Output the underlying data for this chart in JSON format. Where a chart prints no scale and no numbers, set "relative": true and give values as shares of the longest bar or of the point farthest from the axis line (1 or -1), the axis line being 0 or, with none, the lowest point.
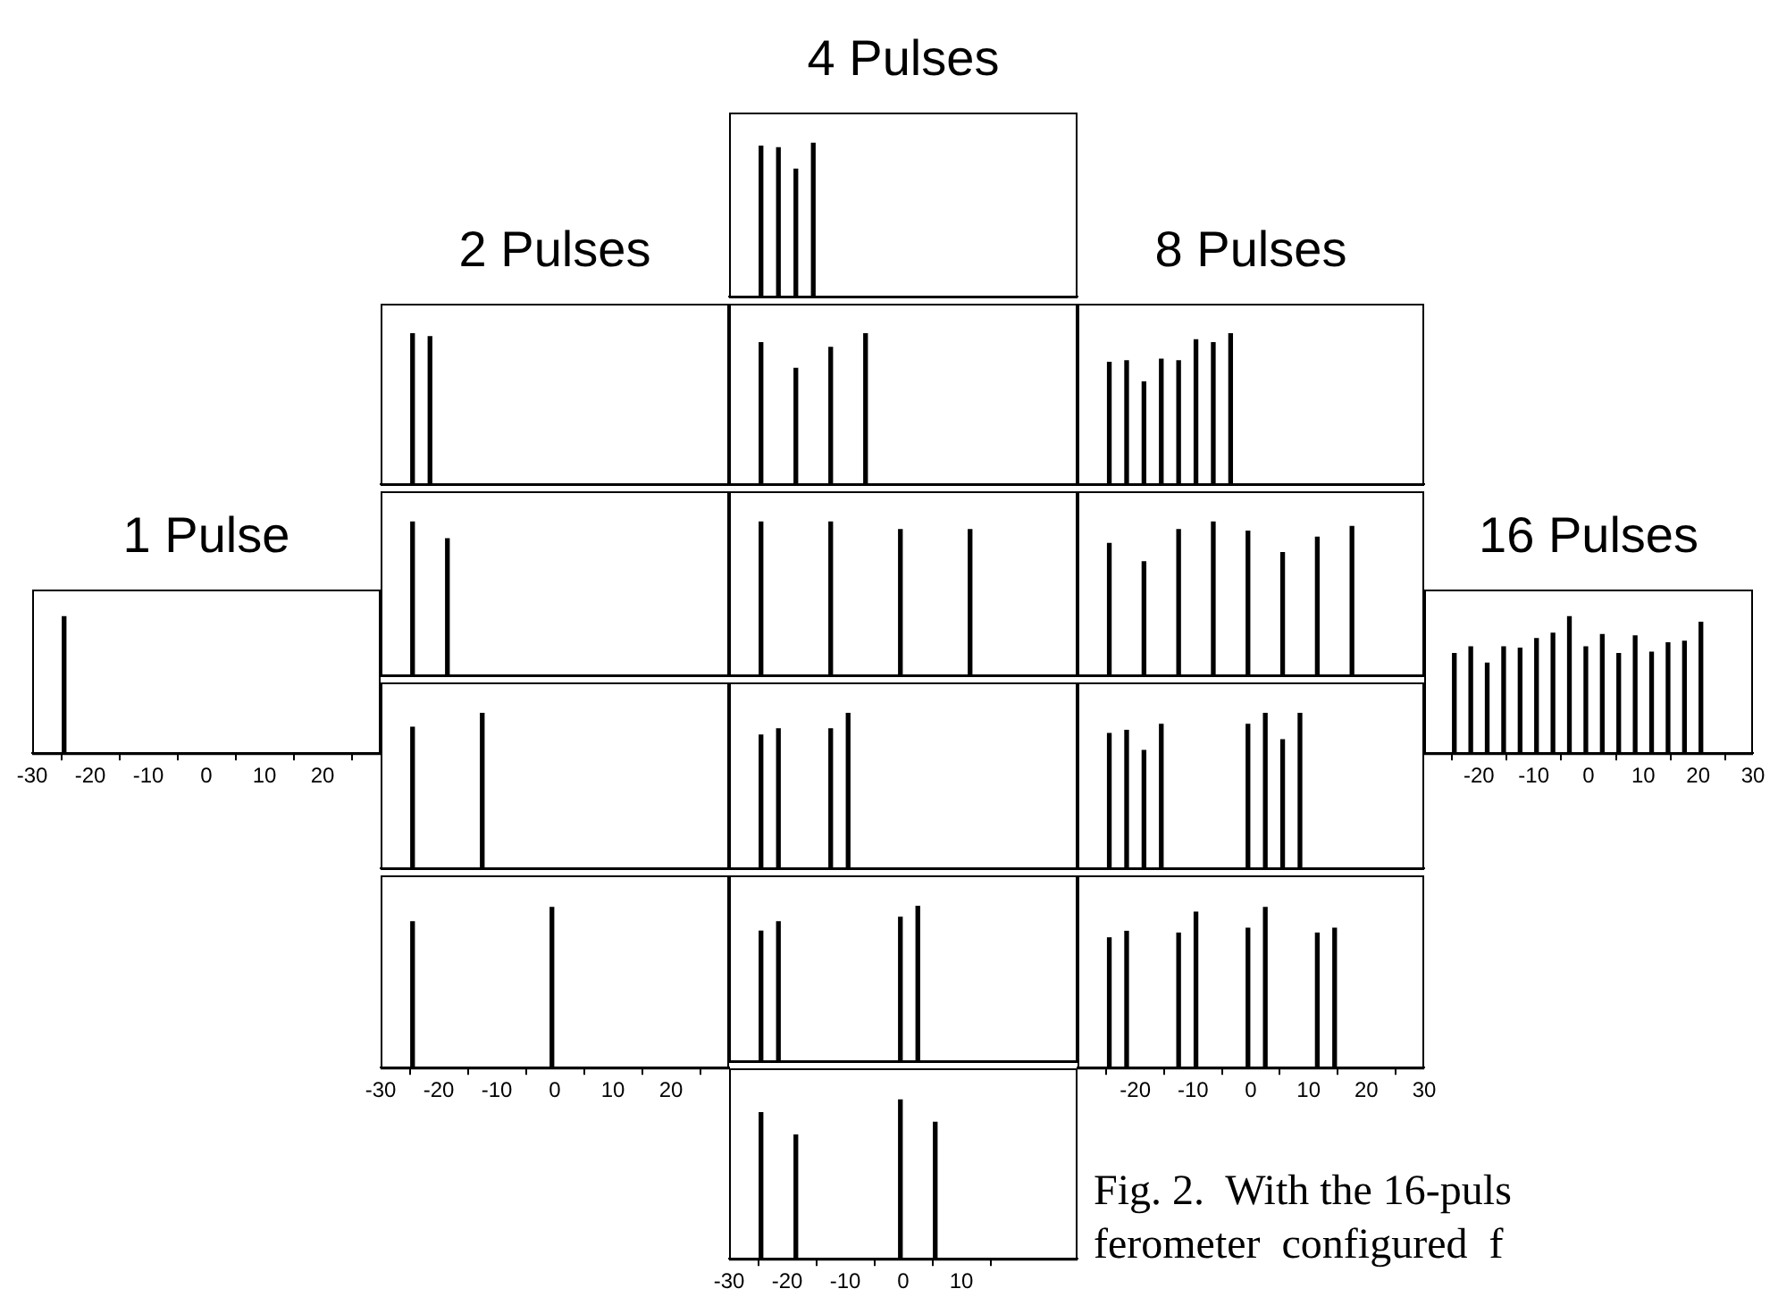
{
  "chart_data": [
    {
      "type": "bar",
      "title": "1 Pulse",
      "relative": true,
      "color": "#000000",
      "x": [
        -24.5
      ],
      "values": [
        1
      ],
      "xlim": [
        -30,
        30
      ],
      "xticks": [
        -30,
        -20,
        -10,
        0,
        10,
        20
      ],
      "tick_labels": "x"
    },
    {
      "type": "bar",
      "title": "2 Pulses",
      "relative": true,
      "color": "#000000",
      "x": [
        -24.5,
        -21.5
      ],
      "values": [
        1,
        0.98
      ],
      "xlim": [
        -30,
        30
      ],
      "tick_labels": false
    },
    {
      "type": "bar",
      "relative": true,
      "color": "#000000",
      "x": [
        -24.5,
        -18.5
      ],
      "values": [
        1,
        0.89
      ],
      "xlim": [
        -30,
        30
      ],
      "tick_labels": false
    },
    {
      "type": "bar",
      "relative": true,
      "color": "#000000",
      "x": [
        -24.5,
        -12.5
      ],
      "values": [
        0.91,
        1
      ],
      "xlim": [
        -30,
        30
      ],
      "tick_labels": false
    },
    {
      "type": "bar",
      "relative": true,
      "color": "#000000",
      "x": [
        -24.5,
        -0.5
      ],
      "values": [
        0.91,
        1
      ],
      "xlim": [
        -30,
        30
      ],
      "xticks": [
        -30,
        -20,
        -10,
        0,
        10,
        20
      ],
      "tick_labels": "x"
    },
    {
      "type": "bar",
      "title": "4 Pulses",
      "relative": true,
      "color": "#000000",
      "x": [
        -24.5,
        -21.5,
        -18.5,
        -15.5
      ],
      "values": [
        0.98,
        0.97,
        0.83,
        1
      ],
      "xlim": [
        -30,
        30
      ],
      "tick_labels": false
    },
    {
      "type": "bar",
      "relative": true,
      "color": "#000000",
      "x": [
        -24.5,
        -18.5,
        -12.5,
        -6.5
      ],
      "values": [
        0.94,
        0.77,
        0.91,
        1
      ],
      "xlim": [
        -30,
        30
      ],
      "tick_labels": false
    },
    {
      "type": "bar",
      "relative": true,
      "color": "#000000",
      "x": [
        -24.5,
        -12.5,
        -0.5,
        11.5
      ],
      "values": [
        1,
        1,
        0.95,
        0.95
      ],
      "xlim": [
        -30,
        30
      ],
      "tick_labels": false
    },
    {
      "type": "bar",
      "relative": true,
      "color": "#000000",
      "x": [
        -24.5,
        -21.5,
        -12.5,
        -9.5
      ],
      "values": [
        0.86,
        0.9,
        0.9,
        1
      ],
      "xlim": [
        -30,
        30
      ],
      "tick_labels": false
    },
    {
      "type": "bar",
      "relative": true,
      "color": "#000000",
      "x": [
        -24.5,
        -21.5,
        -0.5,
        2.5
      ],
      "values": [
        0.84,
        0.9,
        0.93,
        1
      ],
      "xlim": [
        -30,
        30
      ],
      "tick_labels": false
    },
    {
      "type": "bar",
      "relative": true,
      "color": "#000000",
      "x": [
        -24.5,
        -18.5,
        -0.5,
        5.5
      ],
      "values": [
        0.92,
        0.78,
        1,
        0.86
      ],
      "xlim": [
        -30,
        30
      ],
      "xticks": [
        -30,
        -20,
        -10,
        0,
        10
      ],
      "tick_labels": "x"
    },
    {
      "type": "bar",
      "title": "8 Pulses",
      "relative": true,
      "color": "#000000",
      "x": [
        -24.5,
        -21.5,
        -18.5,
        -15.5,
        -12.5,
        -9.5,
        -6.5,
        -3.5
      ],
      "values": [
        0.81,
        0.82,
        0.68,
        0.83,
        0.82,
        0.96,
        0.94,
        1
      ],
      "xlim": [
        -30,
        30
      ],
      "tick_labels": false
    },
    {
      "type": "bar",
      "relative": true,
      "color": "#000000",
      "x": [
        -24.5,
        -18.5,
        -12.5,
        -6.5,
        -0.5,
        5.5,
        11.5,
        17.5
      ],
      "values": [
        0.86,
        0.74,
        0.95,
        1,
        0.94,
        0.8,
        0.9,
        0.97
      ],
      "xlim": [
        -30,
        30
      ],
      "tick_labels": false
    },
    {
      "type": "bar",
      "relative": true,
      "color": "#000000",
      "x": [
        -24.5,
        -21.5,
        -18.5,
        -15.5,
        -0.5,
        2.5,
        5.5,
        8.5
      ],
      "values": [
        0.87,
        0.89,
        0.76,
        0.93,
        0.93,
        1,
        0.83,
        1
      ],
      "xlim": [
        -30,
        30
      ],
      "tick_labels": false
    },
    {
      "type": "bar",
      "relative": true,
      "color": "#000000",
      "x": [
        -24.5,
        -21.5,
        -12.5,
        -9.5,
        -0.5,
        2.5,
        11.5,
        14.5
      ],
      "values": [
        0.81,
        0.85,
        0.84,
        0.97,
        0.87,
        1,
        0.84,
        0.87
      ],
      "xlim": [
        -30,
        30
      ],
      "xticks": [
        -20,
        -10,
        0,
        10,
        20,
        30
      ],
      "tick_labels": "x"
    },
    {
      "type": "bar",
      "title": "16 Pulses",
      "relative": true,
      "color": "#000000",
      "x": [
        -24.5,
        -21.5,
        -18.5,
        -15.5,
        -12.5,
        -9.5,
        -6.5,
        -3.5,
        -0.5,
        2.5,
        5.5,
        8.5,
        11.5,
        14.5,
        17.5,
        20.5
      ],
      "values": [
        0.73,
        0.78,
        0.66,
        0.78,
        0.77,
        0.84,
        0.88,
        1,
        0.78,
        0.87,
        0.73,
        0.86,
        0.74,
        0.81,
        0.82,
        0.96
      ],
      "xlim": [
        -30,
        30
      ],
      "xticks": [
        -20,
        -10,
        0,
        10,
        20,
        30
      ],
      "tick_labels": "x"
    },
    {
      "type": "other",
      "annotations": [
        "Fig. 2.  With the 16-puls",
        "ferometer  configured  f"
      ]
    }
  ]
}
